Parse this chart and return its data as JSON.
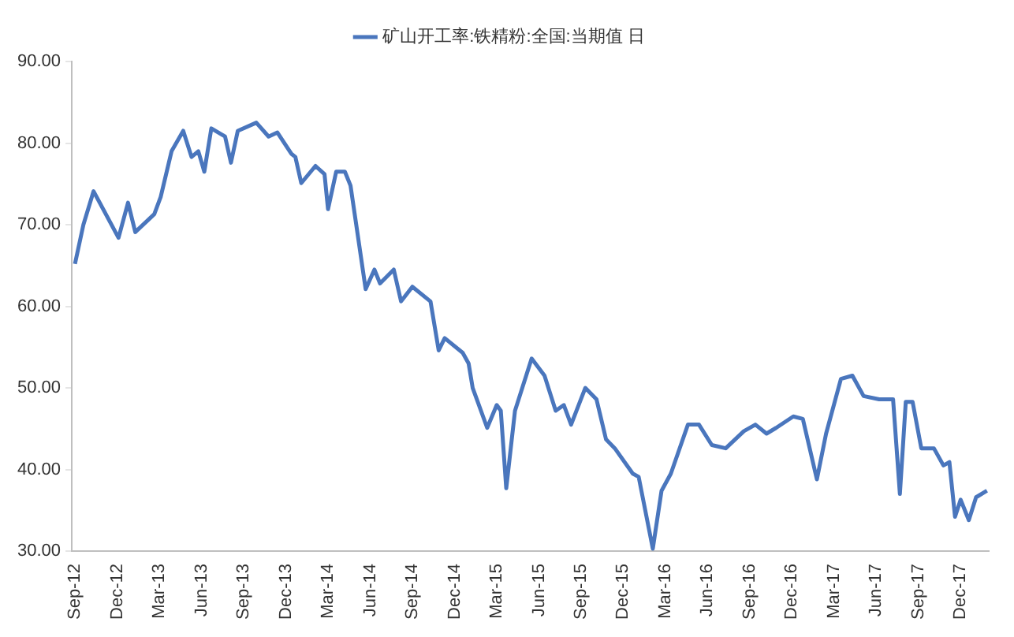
{
  "chart_data": {
    "type": "line",
    "legend": "top",
    "grid": false,
    "marker": "none",
    "line_style": "solid",
    "xlim": [
      "2012-08-25",
      "2018-02-01"
    ],
    "xticks": [
      {
        "value": "2012-09-01",
        "label": "Sep-12"
      },
      {
        "value": "2012-12-01",
        "label": "Dec-12"
      },
      {
        "value": "2013-03-01",
        "label": "Mar-13"
      },
      {
        "value": "2013-06-01",
        "label": "Jun-13"
      },
      {
        "value": "2013-09-01",
        "label": "Sep-13"
      },
      {
        "value": "2013-12-01",
        "label": "Dec-13"
      },
      {
        "value": "2014-03-01",
        "label": "Mar-14"
      },
      {
        "value": "2014-06-01",
        "label": "Jun-14"
      },
      {
        "value": "2014-09-01",
        "label": "Sep-14"
      },
      {
        "value": "2014-12-01",
        "label": "Dec-14"
      },
      {
        "value": "2015-03-01",
        "label": "Mar-15"
      },
      {
        "value": "2015-06-01",
        "label": "Jun-15"
      },
      {
        "value": "2015-09-01",
        "label": "Sep-15"
      },
      {
        "value": "2015-12-01",
        "label": "Dec-15"
      },
      {
        "value": "2016-03-01",
        "label": "Mar-16"
      },
      {
        "value": "2016-06-01",
        "label": "Jun-16"
      },
      {
        "value": "2016-09-01",
        "label": "Sep-16"
      },
      {
        "value": "2016-12-01",
        "label": "Dec-16"
      },
      {
        "value": "2017-03-01",
        "label": "Mar-17"
      },
      {
        "value": "2017-06-01",
        "label": "Jun-17"
      },
      {
        "value": "2017-09-01",
        "label": "Sep-17"
      },
      {
        "value": "2017-12-01",
        "label": "Dec-17"
      }
    ],
    "ylim": [
      30,
      90
    ],
    "yticks": [
      {
        "value": 30,
        "label": "30.00"
      },
      {
        "value": 40,
        "label": "40.00"
      },
      {
        "value": 50,
        "label": "50.00"
      },
      {
        "value": 60,
        "label": "60.00"
      },
      {
        "value": 70,
        "label": "70.00"
      },
      {
        "value": 80,
        "label": "80.00"
      },
      {
        "value": 90,
        "label": "90.00"
      }
    ],
    "x": [
      "2012-09-01",
      "2012-09-19",
      "2012-10-11",
      "2012-12-04",
      "2012-12-25",
      "2013-01-10",
      "2013-02-19",
      "2013-03-04",
      "2013-03-28",
      "2013-04-22",
      "2013-05-10",
      "2013-05-25",
      "2013-06-07",
      "2013-06-22",
      "2013-07-13",
      "2013-07-22",
      "2013-08-04",
      "2013-08-19",
      "2013-09-28",
      "2013-10-25",
      "2013-11-13",
      "2013-12-13",
      "2013-12-22",
      "2014-01-04",
      "2014-02-04",
      "2014-02-22",
      "2014-03-01",
      "2014-03-19",
      "2014-04-07",
      "2014-04-19",
      "2014-05-22",
      "2014-06-10",
      "2014-06-22",
      "2014-07-22",
      "2014-08-07",
      "2014-09-01",
      "2014-10-10",
      "2014-10-28",
      "2014-11-10",
      "2014-12-19",
      "2015-01-01",
      "2015-01-10",
      "2015-02-10",
      "2015-03-01",
      "2015-03-10",
      "2015-03-22",
      "2015-04-10",
      "2015-05-16",
      "2015-06-13",
      "2015-07-07",
      "2015-07-25",
      "2015-08-10",
      "2015-09-10",
      "2015-10-04",
      "2015-10-25",
      "2015-11-13",
      "2015-12-22",
      "2016-01-04",
      "2016-02-04",
      "2016-02-22",
      "2016-03-13",
      "2016-04-19",
      "2016-05-13",
      "2016-06-10",
      "2016-07-10",
      "2016-08-19",
      "2016-09-13",
      "2016-10-07",
      "2016-10-28",
      "2016-12-04",
      "2016-12-25",
      "2017-01-25",
      "2017-02-13",
      "2017-03-16",
      "2017-04-10",
      "2017-05-04",
      "2017-06-07",
      "2017-07-07",
      "2017-07-22",
      "2017-08-04",
      "2017-08-19",
      "2017-09-07",
      "2017-10-04",
      "2017-10-25",
      "2017-11-07",
      "2017-11-19",
      "2017-12-01",
      "2017-12-19",
      "2018-01-04",
      "2018-01-28"
    ],
    "series": [
      {
        "name": "矿山开工率:铁精粉:全国:当期值 日",
        "color": "#4a76bd",
        "values": [
          65.2,
          70.0,
          74.1,
          68.4,
          72.7,
          69.1,
          71.3,
          73.4,
          79.0,
          81.5,
          78.3,
          79.0,
          76.5,
          81.8,
          81.1,
          80.8,
          77.6,
          81.5,
          82.5,
          80.8,
          81.3,
          78.7,
          78.3,
          75.1,
          77.2,
          76.2,
          71.9,
          76.5,
          76.5,
          74.8,
          62.1,
          64.5,
          62.8,
          64.5,
          60.6,
          62.4,
          60.6,
          54.6,
          56.1,
          54.3,
          53.0,
          50.0,
          45.1,
          47.9,
          47.2,
          37.7,
          47.2,
          53.6,
          51.5,
          47.2,
          47.9,
          45.5,
          50.0,
          48.6,
          43.7,
          42.6,
          39.5,
          39.1,
          30.3,
          37.4,
          39.5,
          45.5,
          45.5,
          43.0,
          42.6,
          44.7,
          45.5,
          44.4,
          45.1,
          46.5,
          46.2,
          38.8,
          44.4,
          51.1,
          51.5,
          49.0,
          48.6,
          48.6,
          37.0,
          48.3,
          48.3,
          42.6,
          42.6,
          40.5,
          40.9,
          34.2,
          36.3,
          33.8,
          36.6,
          37.4
        ]
      }
    ]
  }
}
